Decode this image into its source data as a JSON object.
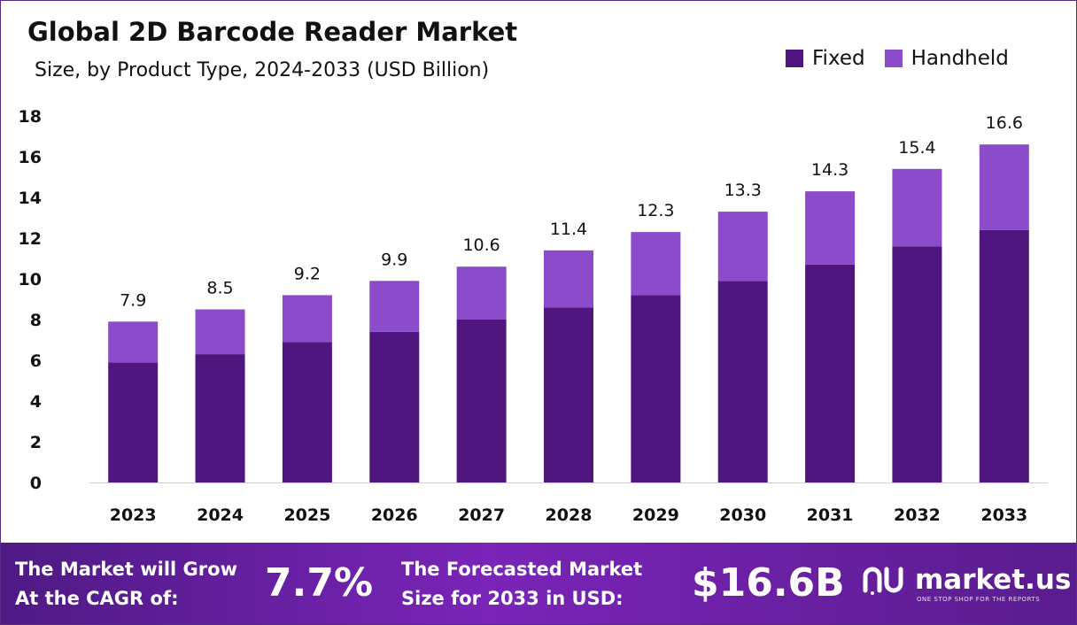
{
  "title": "Global 2D Barcode Reader Market",
  "subtitle": "Size, by Product Type, 2024-2033 (USD Billion)",
  "legend": {
    "fixed": "Fixed",
    "handheld": "Handheld"
  },
  "colors": {
    "fixed": "#4f167f",
    "handheld": "#8b4bcb",
    "axis_text": "#111111"
  },
  "chart_data": {
    "type": "bar",
    "stacked": true,
    "categories": [
      "2023",
      "2024",
      "2025",
      "2026",
      "2027",
      "2028",
      "2029",
      "2030",
      "2031",
      "2032",
      "2033"
    ],
    "series": [
      {
        "name": "Fixed",
        "values": [
          5.9,
          6.3,
          6.9,
          7.4,
          8.0,
          8.6,
          9.2,
          9.9,
          10.7,
          11.6,
          12.4
        ]
      },
      {
        "name": "Handheld",
        "values": [
          2.0,
          2.2,
          2.3,
          2.5,
          2.6,
          2.8,
          3.1,
          3.4,
          3.6,
          3.8,
          4.2
        ]
      }
    ],
    "totals": [
      "7.9",
      "8.5",
      "9.2",
      "9.9",
      "10.6",
      "11.4",
      "12.3",
      "13.3",
      "14.3",
      "15.4",
      "16.6"
    ],
    "yticks": [
      "0",
      "2",
      "4",
      "6",
      "8",
      "10",
      "12",
      "14",
      "16",
      "18"
    ],
    "ylim": [
      0,
      18
    ],
    "grid": false,
    "legend_position": "top-right"
  },
  "footer": {
    "cagr_label_line1": "The Market will Grow",
    "cagr_label_line2": "At the CAGR of:",
    "cagr_value": "7.7%",
    "forecast_label_line1": "The Forecasted Market",
    "forecast_label_line2": "Size for 2033 in USD:",
    "forecast_value": "$16.6B",
    "brand_name": "market.us",
    "brand_tagline": "ONE STOP SHOP FOR THE REPORTS"
  }
}
